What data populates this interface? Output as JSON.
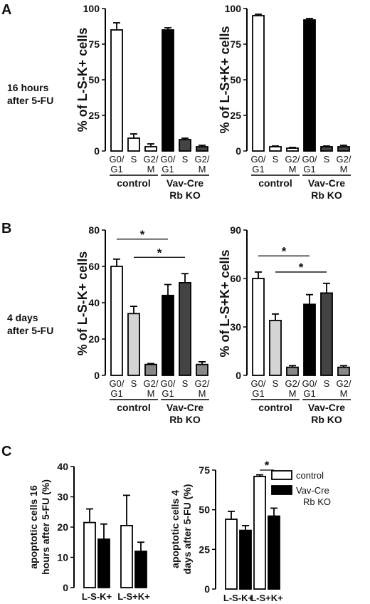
{
  "panels": [
    {
      "letter": "A",
      "side_label": [
        "16 hours",
        "after 5-FU"
      ]
    },
    {
      "letter": "B",
      "side_label": [
        "4 days",
        "after 5-FU"
      ]
    },
    {
      "letter": "C",
      "side_label": []
    }
  ],
  "group_labels": {
    "control": "control",
    "ko_line1": "Vav-Cre",
    "ko_line2": "Rb KO"
  },
  "legend": {
    "items": [
      {
        "label_lines": [
          "control"
        ],
        "color": "#ffffff"
      },
      {
        "label_lines": [
          "Vav-Cre",
          "Rb KO"
        ],
        "color": "#000000"
      }
    ]
  },
  "chart_data": [
    {
      "id": "A-left",
      "type": "bar",
      "ylabel": "% of L-S-K+ cells",
      "ylim": [
        0,
        100
      ],
      "yticks": [
        0,
        25,
        50,
        75,
        100
      ],
      "categories": [
        "G0/\nG1",
        "S",
        "G2/\nM",
        "G0/\nG1",
        "S",
        "G2/\nM"
      ],
      "groups": [
        "control",
        "Vav-Cre Rb KO"
      ],
      "values": [
        85,
        9,
        3,
        85,
        8,
        3
      ],
      "errors": [
        5,
        3,
        2,
        1.5,
        1,
        1
      ],
      "colors": [
        "#ffffff",
        "#ffffff",
        "#ffffff",
        "#000000",
        "#444444",
        "#444444"
      ],
      "significance": []
    },
    {
      "id": "A-right",
      "type": "bar",
      "ylabel": "% of L-S+K+ cells",
      "ylim": [
        0,
        100
      ],
      "yticks": [
        0,
        25,
        50,
        75,
        100
      ],
      "categories": [
        "G0/\nG1",
        "S",
        "G2/\nM",
        "G0/\nG1",
        "S",
        "G2/\nM"
      ],
      "groups": [
        "control",
        "Vav-Cre Rb KO"
      ],
      "values": [
        95,
        3,
        2,
        92,
        3,
        3
      ],
      "errors": [
        1,
        0.5,
        0.5,
        1,
        0.5,
        1
      ],
      "colors": [
        "#ffffff",
        "#ffffff",
        "#ffffff",
        "#000000",
        "#444444",
        "#444444"
      ],
      "significance": []
    },
    {
      "id": "B-left",
      "type": "bar",
      "ylabel": "% of L-S-K+ cells",
      "ylim": [
        0,
        80
      ],
      "yticks": [
        0,
        20,
        40,
        60,
        80
      ],
      "categories": [
        "G0/\nG1",
        "S",
        "G2/\nM",
        "G0/\nG1",
        "S",
        "G2/\nM"
      ],
      "groups": [
        "control",
        "Vav-Cre Rb KO"
      ],
      "values": [
        60,
        34,
        6,
        44,
        51,
        6
      ],
      "errors": [
        4,
        4,
        0.5,
        6,
        5,
        1.5
      ],
      "colors": [
        "#ffffff",
        "#d4d4d4",
        "#888888",
        "#000000",
        "#444444",
        "#888888"
      ],
      "significance": [
        {
          "from": 0,
          "to": 3,
          "y": 75,
          "label": "*"
        },
        {
          "from": 1,
          "to": 4,
          "y": 65,
          "label": "*"
        }
      ]
    },
    {
      "id": "B-right",
      "type": "bar",
      "ylabel": "% of L-S+K+ cells",
      "ylim": [
        0,
        90
      ],
      "yticks": [
        0,
        30,
        60,
        90
      ],
      "categories": [
        "G0/\nG1",
        "S",
        "G2/\nM",
        "G0/\nG1",
        "S",
        "G2/\nM"
      ],
      "groups": [
        "control",
        "Vav-Cre Rb KO"
      ],
      "values": [
        60,
        34,
        5,
        44,
        51,
        5
      ],
      "errors": [
        4,
        4,
        1,
        6,
        6,
        1
      ],
      "colors": [
        "#ffffff",
        "#d4d4d4",
        "#888888",
        "#000000",
        "#444444",
        "#888888"
      ],
      "significance": [
        {
          "from": 0,
          "to": 3,
          "y": 74,
          "label": "*"
        },
        {
          "from": 1,
          "to": 4,
          "y": 64,
          "label": "*"
        }
      ]
    },
    {
      "id": "C-left",
      "type": "bar",
      "ylabel": "apoptotic cells 16 hours after 5-FU (%)",
      "ylim": [
        0,
        40
      ],
      "yticks": [
        0,
        10,
        20,
        30,
        40
      ],
      "categories": [
        "L-S-K+",
        "L-S+K+"
      ],
      "series": [
        {
          "name": "control",
          "values": [
            21.5,
            20.5
          ],
          "errors": [
            4.5,
            10
          ]
        },
        {
          "name": "Vav-Cre Rb KO",
          "values": [
            16,
            12
          ],
          "errors": [
            5,
            3
          ]
        }
      ],
      "significance": []
    },
    {
      "id": "C-right",
      "type": "bar",
      "ylabel": "apoptotic cells 4 days after 5-FU (%)",
      "ylim": [
        0,
        75
      ],
      "yticks": [
        0,
        25,
        50,
        75
      ],
      "categories": [
        "L-S-K+",
        "L-S+K+"
      ],
      "series": [
        {
          "name": "control",
          "values": [
            44,
            71
          ],
          "errors": [
            5,
            1
          ]
        },
        {
          "name": "Vav-Cre Rb KO",
          "values": [
            37,
            46
          ],
          "errors": [
            3,
            5
          ]
        }
      ],
      "significance": [
        {
          "category": 1,
          "y": 75,
          "label": "*"
        }
      ]
    }
  ]
}
